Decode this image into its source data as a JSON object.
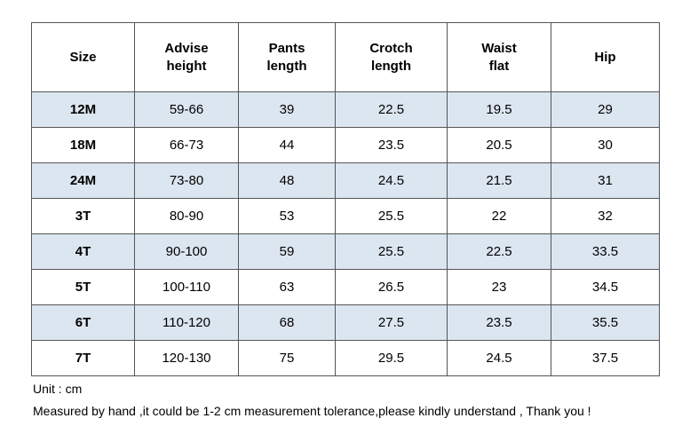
{
  "table": {
    "headers": [
      [
        "Size"
      ],
      [
        "Advise",
        "height"
      ],
      [
        "Pants",
        "length"
      ],
      [
        "Crotch",
        "length"
      ],
      [
        "Waist",
        "flat"
      ],
      [
        "Hip"
      ]
    ],
    "rows": [
      [
        "12M",
        "59-66",
        "39",
        "22.5",
        "19.5",
        "29"
      ],
      [
        "18M",
        "66-73",
        "44",
        "23.5",
        "20.5",
        "30"
      ],
      [
        "24M",
        "73-80",
        "48",
        "24.5",
        "21.5",
        "31"
      ],
      [
        "3T",
        "80-90",
        "53",
        "25.5",
        "22",
        "32"
      ],
      [
        "4T",
        "90-100",
        "59",
        "25.5",
        "22.5",
        "33.5"
      ],
      [
        "5T",
        "100-110",
        "63",
        "26.5",
        "23",
        "34.5"
      ],
      [
        "6T",
        "110-120",
        "68",
        "27.5",
        "23.5",
        "35.5"
      ],
      [
        "7T",
        "120-130",
        "75",
        "29.5",
        "24.5",
        "37.5"
      ]
    ]
  },
  "notes": {
    "unit": "Unit : cm",
    "tolerance": "Measured by hand ,it could be 1-2 cm measurement tolerance,please kindly understand , Thank you !"
  },
  "colors": {
    "row_shade": "#dce6f1",
    "border": "#555555"
  }
}
